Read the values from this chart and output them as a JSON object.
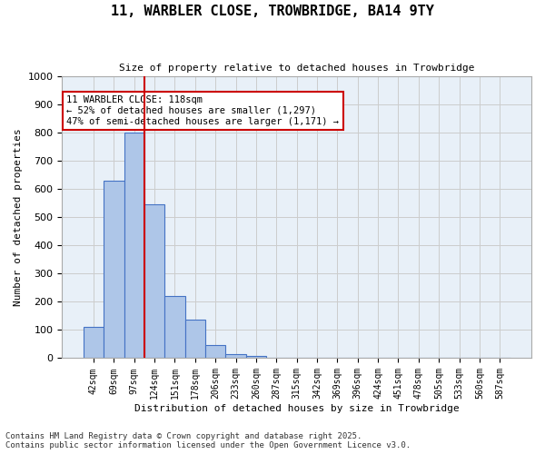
{
  "title_line1": "11, WARBLER CLOSE, TROWBRIDGE, BA14 9TY",
  "title_line2": "Size of property relative to detached houses in Trowbridge",
  "xlabel": "Distribution of detached houses by size in Trowbridge",
  "ylabel": "Number of detached properties",
  "categories": [
    "42sqm",
    "69sqm",
    "97sqm",
    "124sqm",
    "151sqm",
    "178sqm",
    "206sqm",
    "233sqm",
    "260sqm",
    "287sqm",
    "315sqm",
    "342sqm",
    "369sqm",
    "396sqm",
    "424sqm",
    "451sqm",
    "478sqm",
    "505sqm",
    "533sqm",
    "560sqm",
    "587sqm"
  ],
  "values": [
    110,
    630,
    800,
    545,
    220,
    135,
    45,
    13,
    8,
    2,
    0,
    0,
    0,
    0,
    0,
    0,
    0,
    0,
    0,
    0,
    0
  ],
  "bar_color": "#aec6e8",
  "bar_edge_color": "#4472c4",
  "bar_width": 1.0,
  "property_line_x": 2.5,
  "property_sqm": 118,
  "annotation_text": "11 WARBLER CLOSE: 118sqm\n← 52% of detached houses are smaller (1,297)\n47% of semi-detached houses are larger (1,171) →",
  "annotation_box_color": "#ffffff",
  "annotation_box_edge_color": "#cc0000",
  "vline_color": "#cc0000",
  "grid_color": "#cccccc",
  "background_color": "#e8f0f8",
  "footer_line1": "Contains HM Land Registry data © Crown copyright and database right 2025.",
  "footer_line2": "Contains public sector information licensed under the Open Government Licence v3.0.",
  "ylim": [
    0,
    1000
  ],
  "yticks": [
    0,
    100,
    200,
    300,
    400,
    500,
    600,
    700,
    800,
    900,
    1000
  ]
}
